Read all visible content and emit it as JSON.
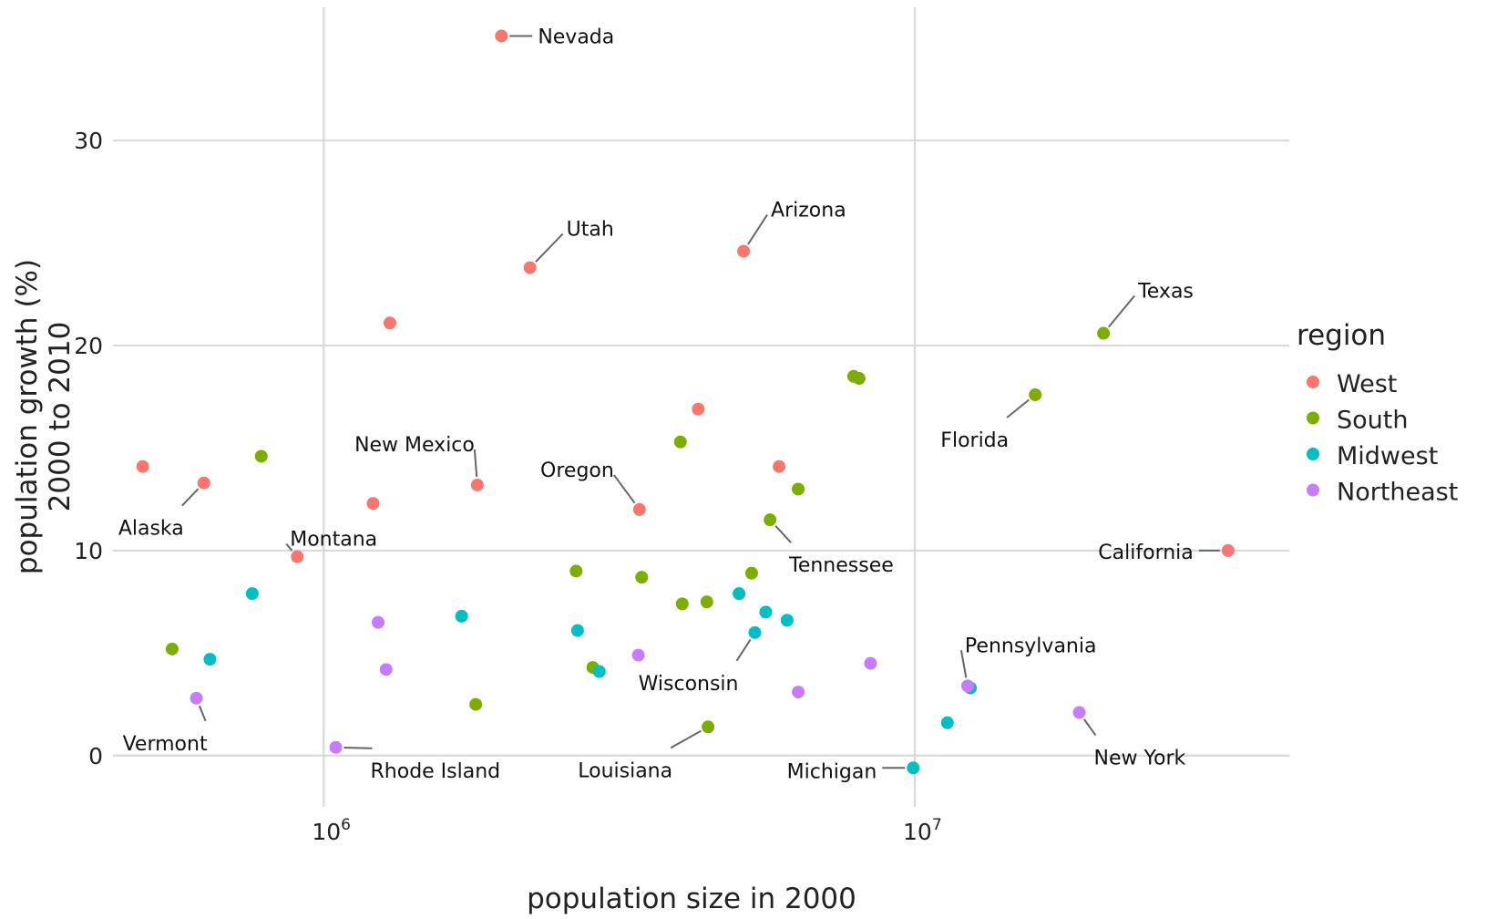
{
  "chart_data": {
    "type": "scatter",
    "title": "",
    "xlabel": "population size in 2000",
    "ylabel_lines": [
      "population growth (%)",
      "2000 to 2010"
    ],
    "x_scale": "log10",
    "xlim": [
      440000,
      43000000
    ],
    "ylim": [
      -2.5,
      36.5
    ],
    "x_ticks": [
      {
        "value": 1000000,
        "base": "10",
        "exp": "6"
      },
      {
        "value": 10000000,
        "base": "10",
        "exp": "7"
      }
    ],
    "y_ticks": [
      0,
      10,
      20,
      30
    ],
    "grid": true,
    "legend": {
      "title": "region",
      "position": "right",
      "entries": [
        {
          "name": "West",
          "color": "#F8766D"
        },
        {
          "name": "South",
          "color": "#7CAE00"
        },
        {
          "name": "Midwest",
          "color": "#00BFC4"
        },
        {
          "name": "Northeast",
          "color": "#C77CFF"
        }
      ]
    },
    "points": [
      {
        "x": 1998000,
        "y": 35.1,
        "region": "West",
        "label": "Nevada"
      },
      {
        "x": 2233000,
        "y": 23.8,
        "region": "West",
        "label": "Utah"
      },
      {
        "x": 5131000,
        "y": 24.6,
        "region": "West",
        "label": "Arizona"
      },
      {
        "x": 1294000,
        "y": 21.1,
        "region": "West"
      },
      {
        "x": 20852000,
        "y": 20.6,
        "region": "South",
        "label": "Texas"
      },
      {
        "x": 7879000,
        "y": 18.5,
        "region": "South"
      },
      {
        "x": 8049000,
        "y": 18.4,
        "region": "South"
      },
      {
        "x": 15982000,
        "y": 17.6,
        "region": "South",
        "label": "Florida"
      },
      {
        "x": 4301000,
        "y": 16.9,
        "region": "West"
      },
      {
        "x": 4012000,
        "y": 15.3,
        "region": "South"
      },
      {
        "x": 784000,
        "y": 14.6,
        "region": "South"
      },
      {
        "x": 494000,
        "y": 14.1,
        "region": "West"
      },
      {
        "x": 5894000,
        "y": 14.1,
        "region": "West"
      },
      {
        "x": 627000,
        "y": 13.3,
        "region": "West",
        "label": "Alaska"
      },
      {
        "x": 1819000,
        "y": 13.2,
        "region": "West",
        "label": "New Mexico"
      },
      {
        "x": 6349000,
        "y": 13.0,
        "region": "South"
      },
      {
        "x": 1212000,
        "y": 12.3,
        "region": "West"
      },
      {
        "x": 3421000,
        "y": 12.0,
        "region": "West",
        "label": "Oregon"
      },
      {
        "x": 5689000,
        "y": 11.5,
        "region": "South",
        "label": "Tennessee"
      },
      {
        "x": 33872000,
        "y": 10.0,
        "region": "West",
        "label": "California"
      },
      {
        "x": 902000,
        "y": 9.7,
        "region": "West",
        "label": "Montana"
      },
      {
        "x": 2673000,
        "y": 9.0,
        "region": "South"
      },
      {
        "x": 5296000,
        "y": 8.9,
        "region": "South"
      },
      {
        "x": 3451000,
        "y": 8.7,
        "region": "South"
      },
      {
        "x": 757000,
        "y": 7.9,
        "region": "Midwest"
      },
      {
        "x": 5042000,
        "y": 7.9,
        "region": "Midwest"
      },
      {
        "x": 4447000,
        "y": 7.5,
        "region": "South"
      },
      {
        "x": 4041000,
        "y": 7.4,
        "region": "South"
      },
      {
        "x": 5595000,
        "y": 7.0,
        "region": "Midwest"
      },
      {
        "x": 1711000,
        "y": 6.8,
        "region": "Midwest"
      },
      {
        "x": 6080000,
        "y": 6.6,
        "region": "Midwest"
      },
      {
        "x": 1236000,
        "y": 6.5,
        "region": "Northeast"
      },
      {
        "x": 2688000,
        "y": 6.1,
        "region": "Midwest"
      },
      {
        "x": 5363000,
        "y": 6.0,
        "region": "Midwest",
        "label": "Wisconsin"
      },
      {
        "x": 554000,
        "y": 5.2,
        "region": "South"
      },
      {
        "x": 3406000,
        "y": 4.9,
        "region": "Northeast"
      },
      {
        "x": 642000,
        "y": 4.7,
        "region": "Midwest"
      },
      {
        "x": 8414000,
        "y": 4.5,
        "region": "Northeast"
      },
      {
        "x": 2853000,
        "y": 4.3,
        "region": "South"
      },
      {
        "x": 1275000,
        "y": 4.2,
        "region": "Northeast"
      },
      {
        "x": 2926000,
        "y": 4.1,
        "region": "Midwest"
      },
      {
        "x": 12419000,
        "y": 3.3,
        "region": "Midwest"
      },
      {
        "x": 12281000,
        "y": 3.4,
        "region": "Northeast",
        "label": "Pennsylvania"
      },
      {
        "x": 6349000,
        "y": 3.1,
        "region": "Northeast"
      },
      {
        "x": 609000,
        "y": 2.8,
        "region": "Northeast",
        "label": "Vermont"
      },
      {
        "x": 1808000,
        "y": 2.5,
        "region": "South"
      },
      {
        "x": 18976000,
        "y": 2.1,
        "region": "Northeast",
        "label": "New York"
      },
      {
        "x": 11353000,
        "y": 1.6,
        "region": "Midwest"
      },
      {
        "x": 4469000,
        "y": 1.4,
        "region": "South",
        "label": "Louisiana"
      },
      {
        "x": 1048000,
        "y": 0.4,
        "region": "Northeast",
        "label": "Rhode Island"
      },
      {
        "x": 9938000,
        "y": -0.6,
        "region": "Midwest",
        "label": "Michigan"
      }
    ]
  }
}
